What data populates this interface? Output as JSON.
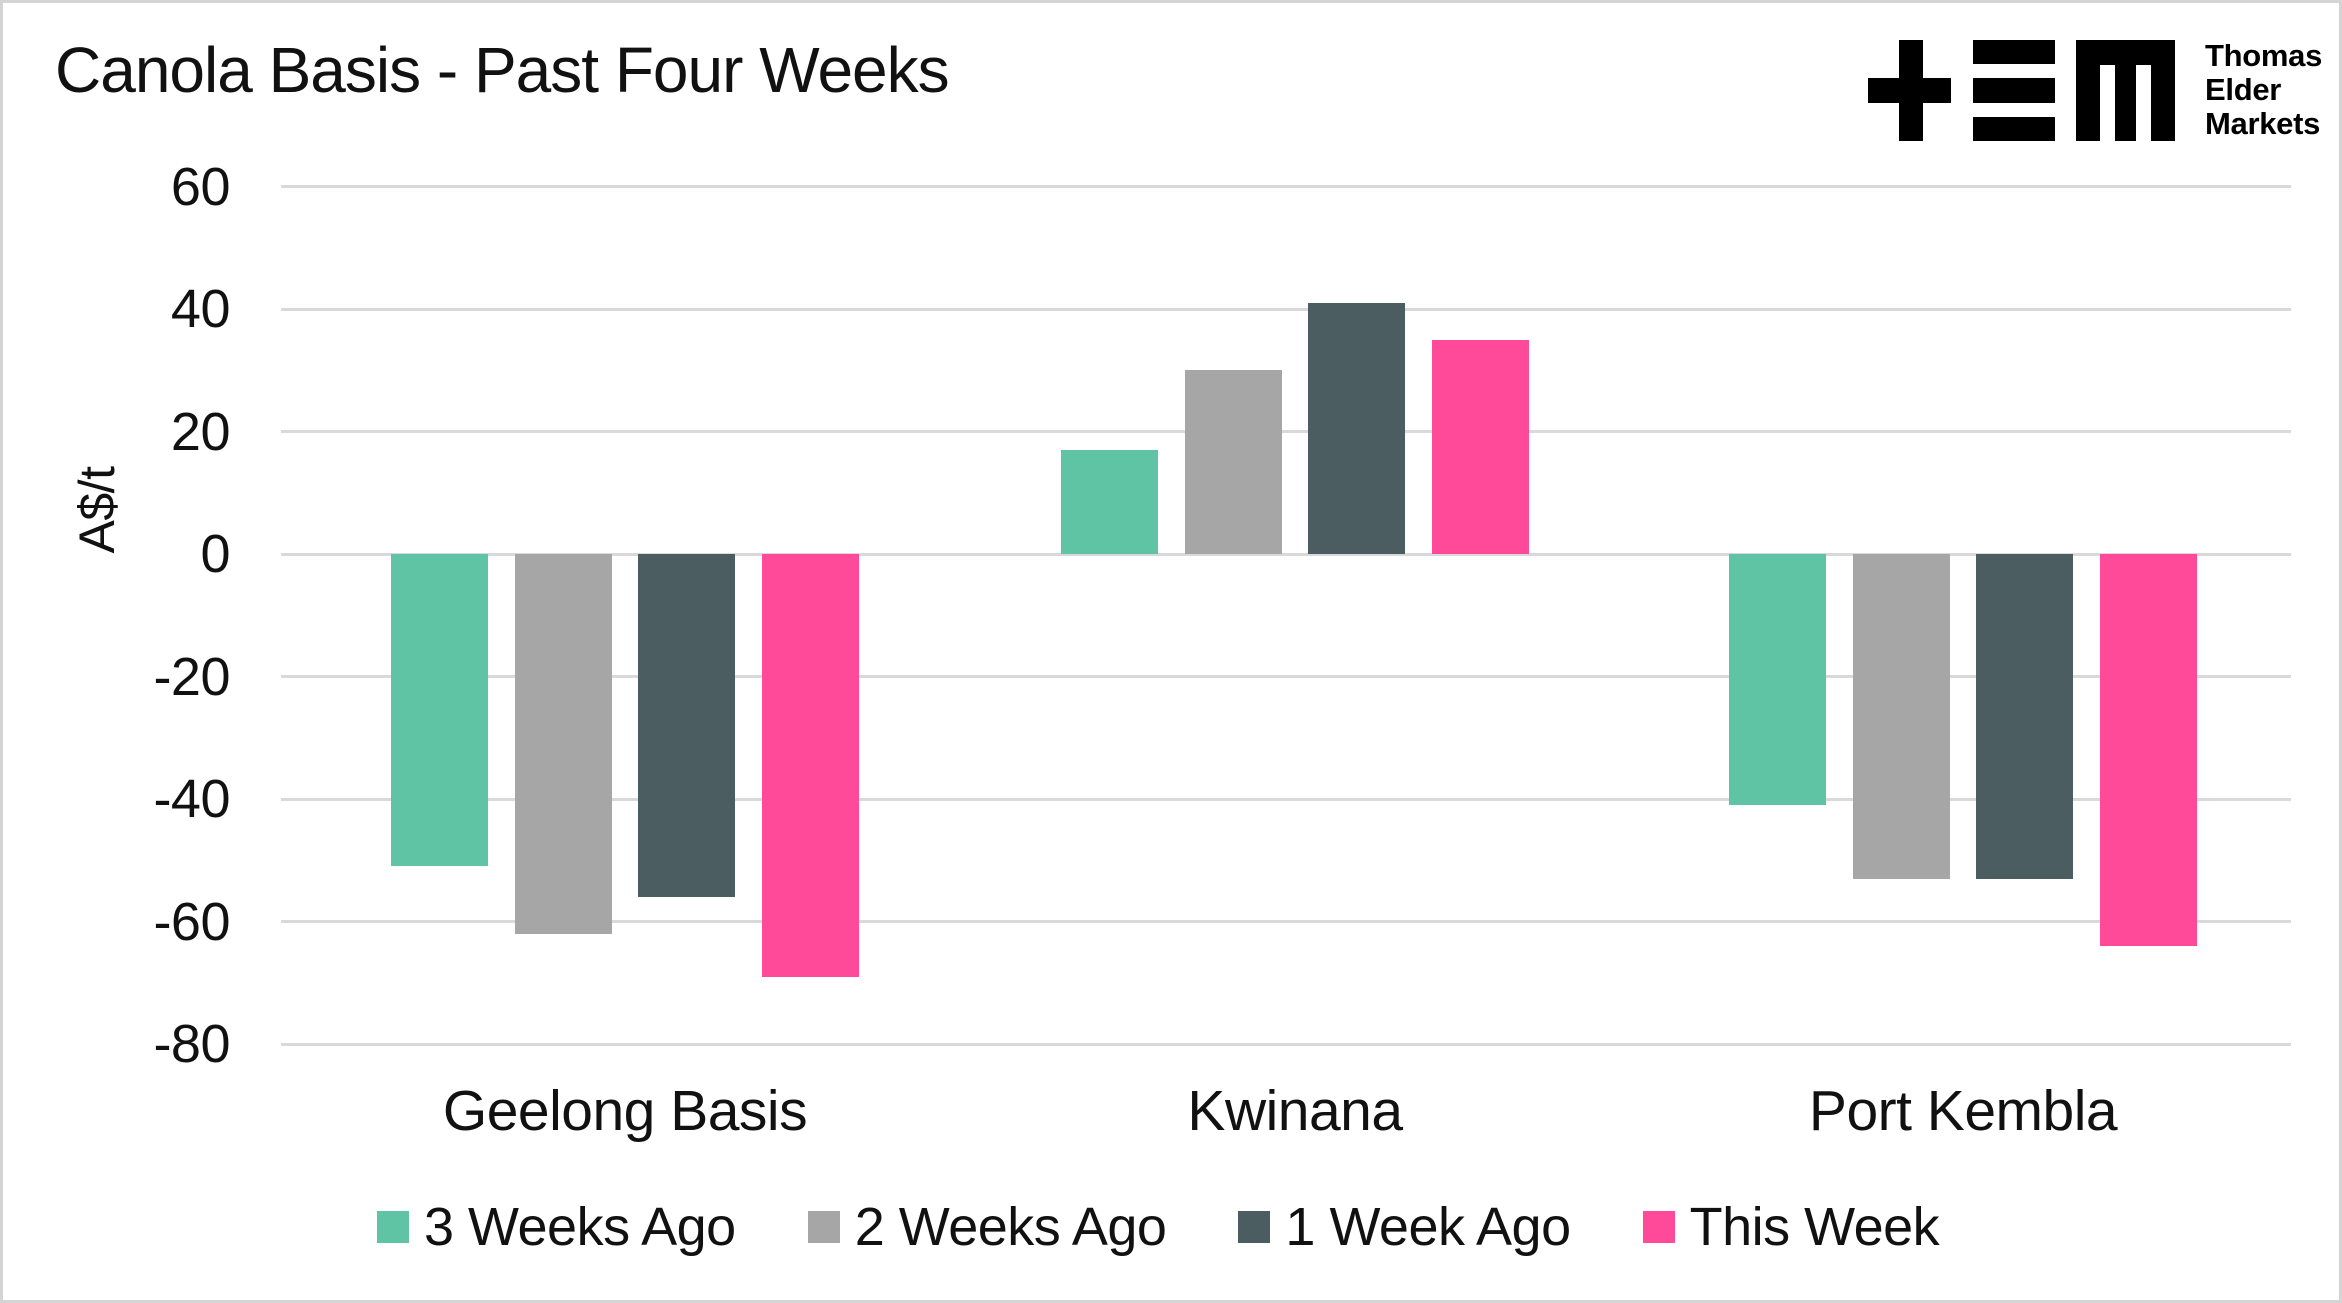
{
  "title": "Canola Basis - Past Four Weeks",
  "brand": {
    "name_lines": [
      "Thomas",
      "Elder",
      "Markets"
    ]
  },
  "chart_data": {
    "type": "bar",
    "title": "Canola Basis - Past Four Weeks",
    "categories": [
      "Geelong Basis",
      "Kwinana",
      "Port Kembla"
    ],
    "series": [
      {
        "name": "3 Weeks Ago",
        "color": "#5FC4A4",
        "values": [
          -51,
          17,
          -41
        ]
      },
      {
        "name": "2 Weeks Ago",
        "color": "#A6A6A6",
        "values": [
          -62,
          30,
          -53
        ]
      },
      {
        "name": "1 Week Ago",
        "color": "#4B5D60",
        "values": [
          -56,
          41,
          -53
        ]
      },
      {
        "name": "This Week",
        "color": "#FF4A99",
        "values": [
          -69,
          35,
          -64
        ]
      }
    ],
    "xlabel": "",
    "ylabel": "A$/t",
    "ylim": [
      -80,
      60
    ],
    "yticks": [
      60,
      40,
      20,
      0,
      -20,
      -40,
      -60,
      -80
    ],
    "grid": true,
    "legend_position": "bottom"
  },
  "colors": {
    "background": "#FFFFFF",
    "border": "#D4D4D4",
    "gridline": "#D9D9D9",
    "text": "#111111"
  }
}
